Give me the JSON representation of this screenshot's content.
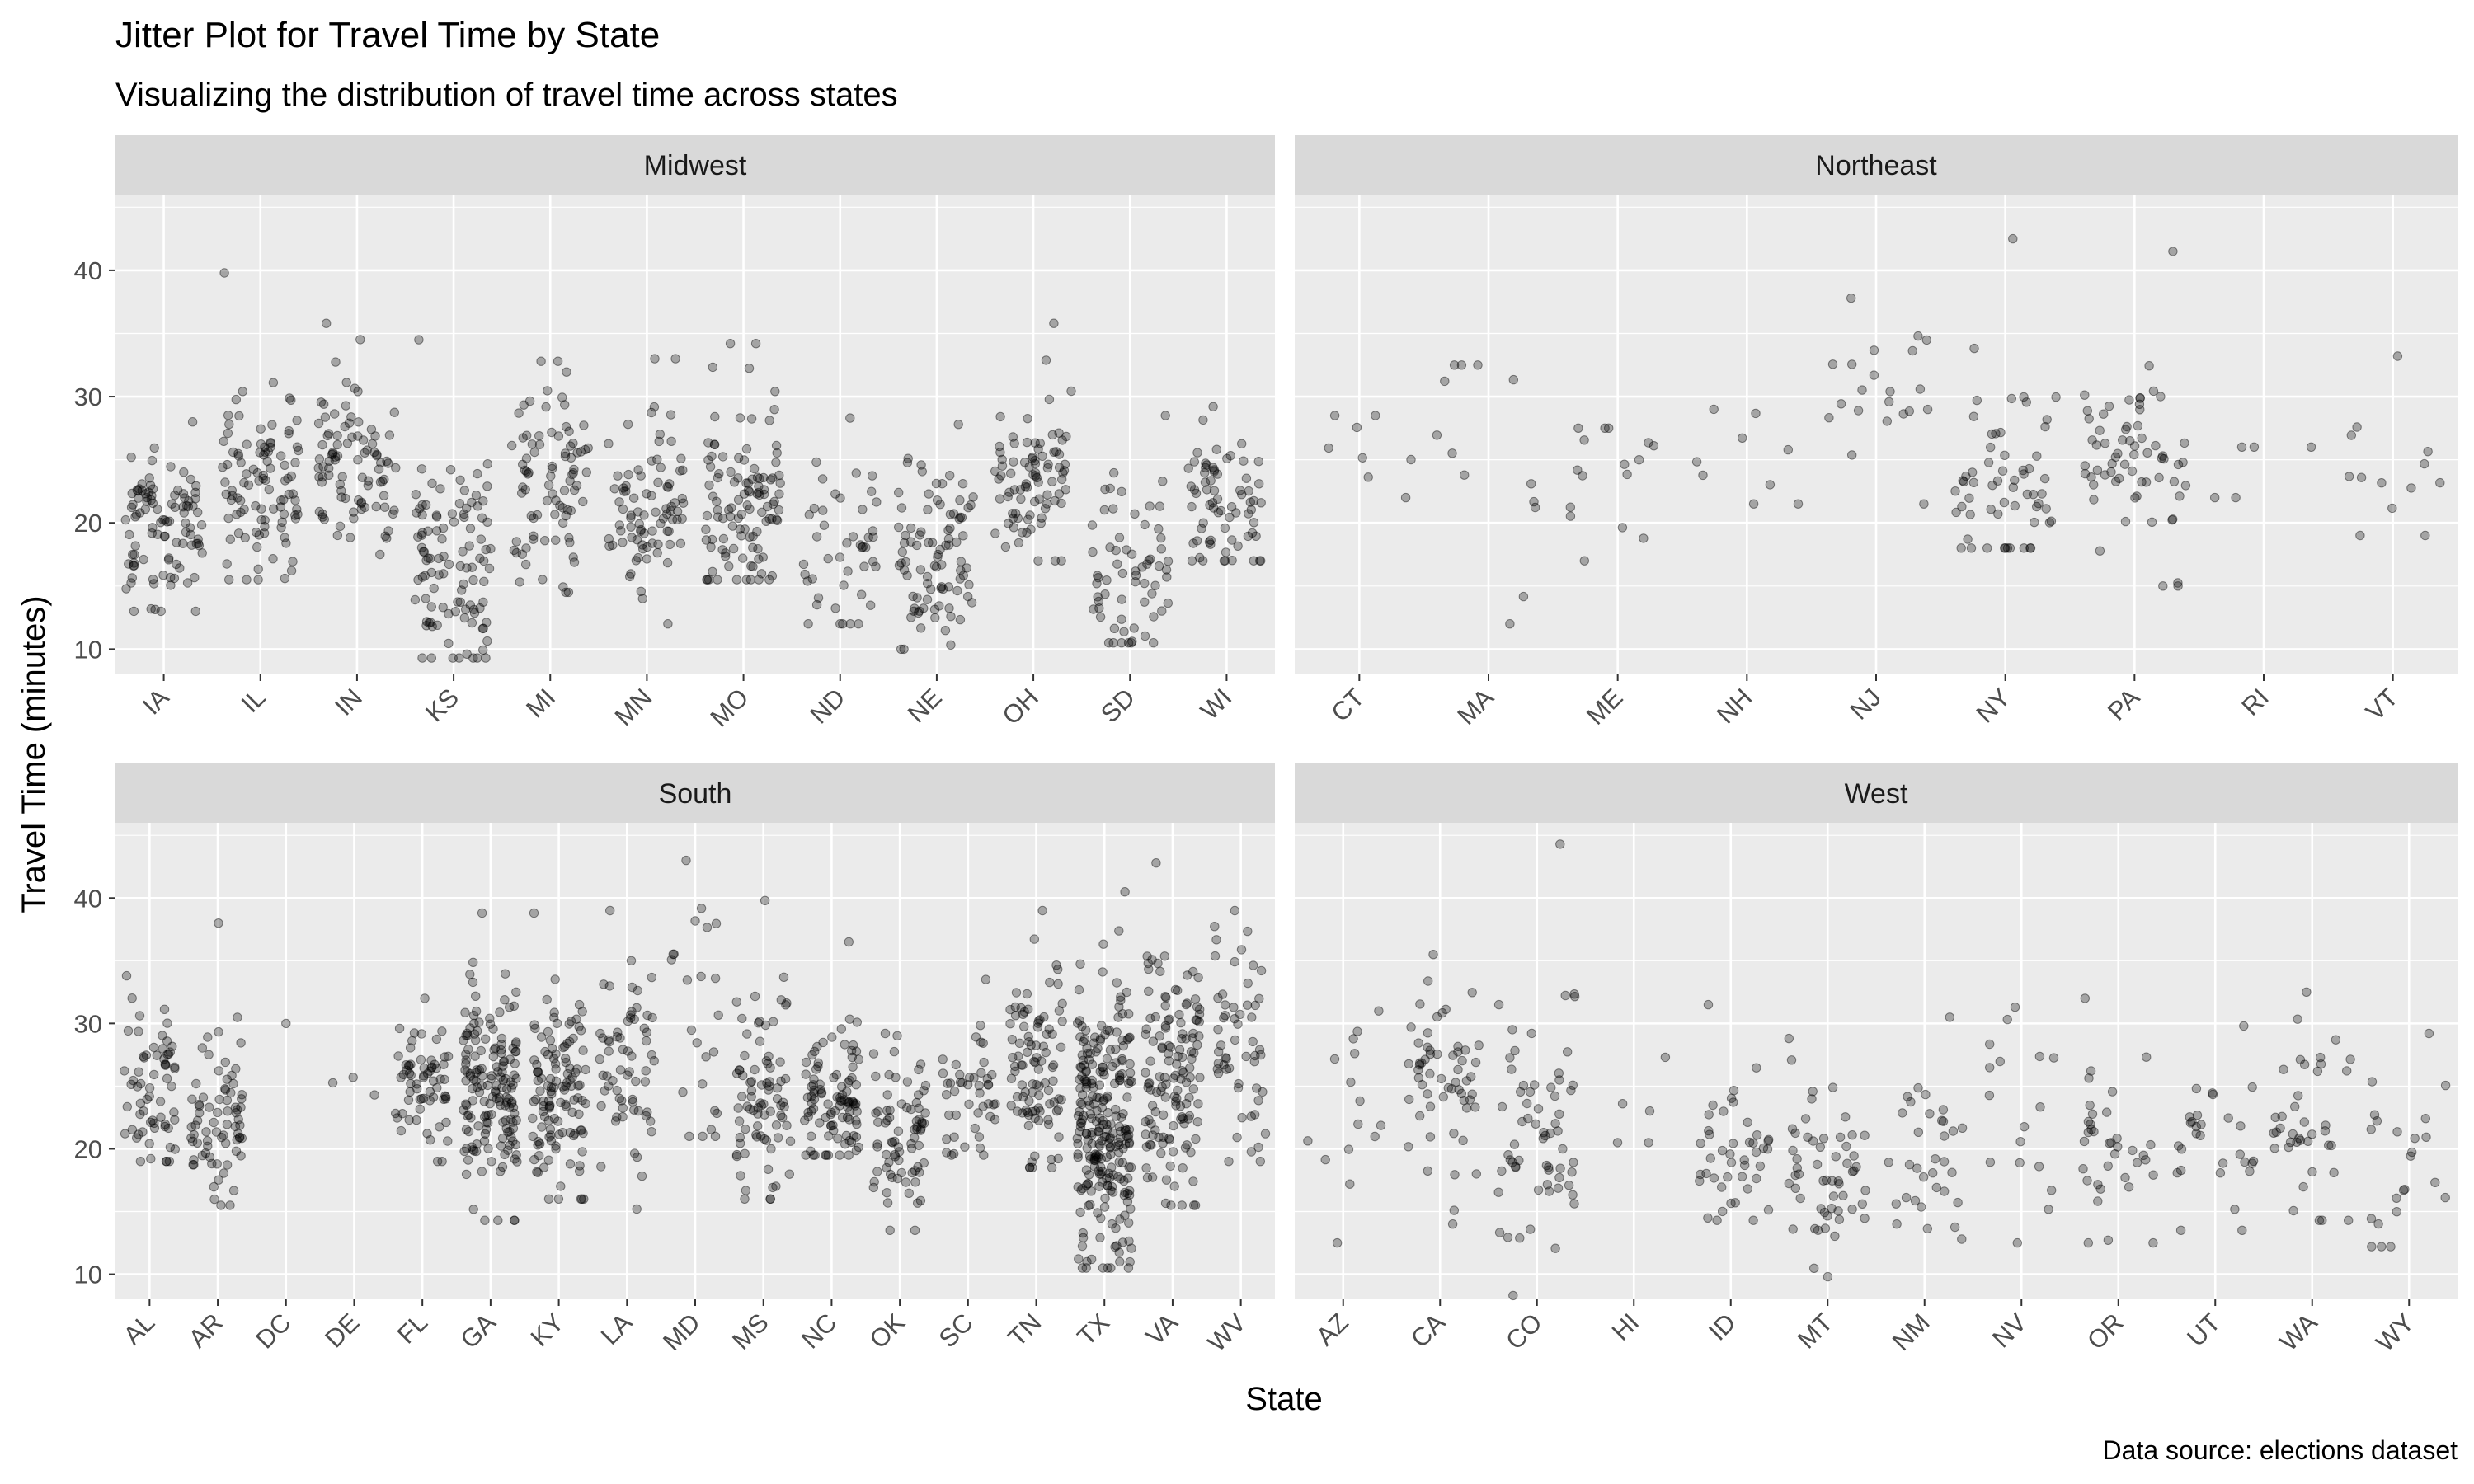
{
  "chart_data": {
    "type": "scatter",
    "subtype": "jitter",
    "title": "Jitter Plot for Travel Time by State",
    "subtitle": "Visualizing the distribution of travel time across states",
    "xlabel": "State",
    "ylabel": "Travel Time (minutes)",
    "caption": "Data source: elections dataset",
    "ylim": [
      8,
      46
    ],
    "yticks": [
      10,
      20,
      30,
      40
    ],
    "point_color": "#000000",
    "point_alpha": 0.3,
    "panel_background": "#ebebeb",
    "strip_background": "#d9d9d9",
    "grid_color": "#ffffff",
    "facets": [
      {
        "name": "Midwest",
        "groups": [
          {
            "state": "IA",
            "n": 100,
            "median": 19.5,
            "spread": 2.8,
            "min": 13,
            "max": 28
          },
          {
            "state": "IL",
            "n": 100,
            "median": 23.0,
            "spread": 3.3,
            "min": 15.5,
            "max": 39.8
          },
          {
            "state": "IN",
            "n": 90,
            "median": 24.5,
            "spread": 3.3,
            "min": 17.5,
            "max": 35.8
          },
          {
            "state": "KS",
            "n": 105,
            "median": 16.5,
            "spread": 4.2,
            "min": 9.3,
            "max": 34.5
          },
          {
            "state": "MI",
            "n": 85,
            "median": 22.5,
            "spread": 3.8,
            "min": 14.5,
            "max": 32.8
          },
          {
            "state": "MN",
            "n": 85,
            "median": 21.0,
            "spread": 4.2,
            "min": 12,
            "max": 33
          },
          {
            "state": "MO",
            "n": 110,
            "median": 22.0,
            "spread": 4.3,
            "min": 15.5,
            "max": 34.2
          },
          {
            "state": "ND",
            "n": 45,
            "median": 17.5,
            "spread": 3.3,
            "min": 12,
            "max": 28.3
          },
          {
            "state": "NE",
            "n": 90,
            "median": 17.0,
            "spread": 3.5,
            "min": 10,
            "max": 27.8
          },
          {
            "state": "OH",
            "n": 85,
            "median": 23.5,
            "spread": 3.3,
            "min": 17,
            "max": 35.8
          },
          {
            "state": "SD",
            "n": 65,
            "median": 16.0,
            "spread": 3.6,
            "min": 10.5,
            "max": 28.5
          },
          {
            "state": "WI",
            "n": 70,
            "median": 21.5,
            "spread": 2.8,
            "min": 17,
            "max": 29.2
          }
        ]
      },
      {
        "name": "Northeast",
        "groups": [
          {
            "state": "CT",
            "n": 8,
            "median": 25.0,
            "spread": 2.0,
            "min": 22,
            "max": 28.5
          },
          {
            "state": "MA",
            "n": 13,
            "median": 26.0,
            "spread": 5.0,
            "min": 12,
            "max": 32.5
          },
          {
            "state": "ME",
            "n": 16,
            "median": 23.0,
            "spread": 2.8,
            "min": 17,
            "max": 27.5
          },
          {
            "state": "NH",
            "n": 9,
            "median": 24.5,
            "spread": 2.3,
            "min": 21.5,
            "max": 29
          },
          {
            "state": "NJ",
            "n": 21,
            "median": 29.5,
            "spread": 3.5,
            "min": 21.5,
            "max": 37.8
          },
          {
            "state": "NY",
            "n": 60,
            "median": 23.0,
            "spread": 4.5,
            "min": 18,
            "max": 42.5
          },
          {
            "state": "PA",
            "n": 65,
            "median": 24.5,
            "spread": 3.5,
            "min": 15,
            "max": 41.5
          },
          {
            "state": "RI",
            "n": 5,
            "median": 24.0,
            "spread": 1.5,
            "min": 22,
            "max": 26
          },
          {
            "state": "VT",
            "n": 13,
            "median": 23.0,
            "spread": 3.0,
            "min": 19,
            "max": 33.2
          }
        ]
      },
      {
        "name": "South",
        "groups": [
          {
            "state": "AL",
            "n": 65,
            "median": 25.5,
            "spread": 3.0,
            "min": 19,
            "max": 33.8
          },
          {
            "state": "AR",
            "n": 75,
            "median": 22.0,
            "spread": 3.5,
            "min": 15.5,
            "max": 38
          },
          {
            "state": "DC",
            "n": 1,
            "median": 30.0,
            "spread": 0.0,
            "min": 30,
            "max": 30
          },
          {
            "state": "DE",
            "n": 3,
            "median": 25.0,
            "spread": 0.6,
            "min": 24.3,
            "max": 25.7
          },
          {
            "state": "FL",
            "n": 65,
            "median": 25.5,
            "spread": 2.8,
            "min": 19,
            "max": 32
          },
          {
            "state": "GA",
            "n": 160,
            "median": 25.0,
            "spread": 4.2,
            "min": 14.3,
            "max": 38.8
          },
          {
            "state": "KY",
            "n": 120,
            "median": 24.5,
            "spread": 4.3,
            "min": 16,
            "max": 38.8
          },
          {
            "state": "LA",
            "n": 64,
            "median": 26.5,
            "spread": 4.0,
            "min": 15.2,
            "max": 39
          },
          {
            "state": "MD",
            "n": 24,
            "median": 30.0,
            "spread": 6.0,
            "min": 21,
            "max": 43
          },
          {
            "state": "MS",
            "n": 82,
            "median": 24.5,
            "spread": 4.5,
            "min": 16,
            "max": 39.8
          },
          {
            "state": "NC",
            "n": 100,
            "median": 24.0,
            "spread": 3.0,
            "min": 19.5,
            "max": 36.5
          },
          {
            "state": "OK",
            "n": 77,
            "median": 21.5,
            "spread": 3.3,
            "min": 13.5,
            "max": 29.2
          },
          {
            "state": "SC",
            "n": 46,
            "median": 25.0,
            "spread": 2.8,
            "min": 19.5,
            "max": 33.5
          },
          {
            "state": "TN",
            "n": 95,
            "median": 26.0,
            "spread": 4.2,
            "min": 18.5,
            "max": 39
          },
          {
            "state": "TX",
            "n": 254,
            "median": 22.5,
            "spread": 5.3,
            "min": 10.5,
            "max": 40.5
          },
          {
            "state": "VA",
            "n": 134,
            "median": 26.0,
            "spread": 5.2,
            "min": 15.5,
            "max": 42.8
          },
          {
            "state": "WV",
            "n": 55,
            "median": 28.0,
            "spread": 4.5,
            "min": 19,
            "max": 39
          }
        ]
      },
      {
        "name": "West",
        "groups": [
          {
            "state": "AZ",
            "n": 15,
            "median": 21.0,
            "spread": 4.5,
            "min": 12.5,
            "max": 31
          },
          {
            "state": "CA",
            "n": 58,
            "median": 25.5,
            "spread": 4.0,
            "min": 14,
            "max": 35.5
          },
          {
            "state": "CO",
            "n": 64,
            "median": 21.0,
            "spread": 5.5,
            "min": 8.3,
            "max": 44.3
          },
          {
            "state": "HI",
            "n": 5,
            "median": 22.5,
            "spread": 2.5,
            "min": 20.5,
            "max": 27.3
          },
          {
            "state": "ID",
            "n": 44,
            "median": 20.5,
            "spread": 3.3,
            "min": 14.3,
            "max": 31.5
          },
          {
            "state": "MT",
            "n": 56,
            "median": 17.5,
            "spread": 3.3,
            "min": 9.8,
            "max": 28.8
          },
          {
            "state": "NM",
            "n": 33,
            "median": 19.5,
            "spread": 3.5,
            "min": 12.8,
            "max": 30.5
          },
          {
            "state": "NV",
            "n": 17,
            "median": 24.0,
            "spread": 5.0,
            "min": 12.5,
            "max": 31.3
          },
          {
            "state": "OR",
            "n": 36,
            "median": 19.5,
            "spread": 4.0,
            "min": 12.5,
            "max": 32
          },
          {
            "state": "UT",
            "n": 29,
            "median": 20.5,
            "spread": 3.3,
            "min": 13.5,
            "max": 29.8
          },
          {
            "state": "WA",
            "n": 39,
            "median": 22.0,
            "spread": 4.3,
            "min": 14.3,
            "max": 32.5
          },
          {
            "state": "WY",
            "n": 23,
            "median": 18.0,
            "spread": 4.0,
            "min": 12.2,
            "max": 29.2
          }
        ]
      }
    ]
  }
}
